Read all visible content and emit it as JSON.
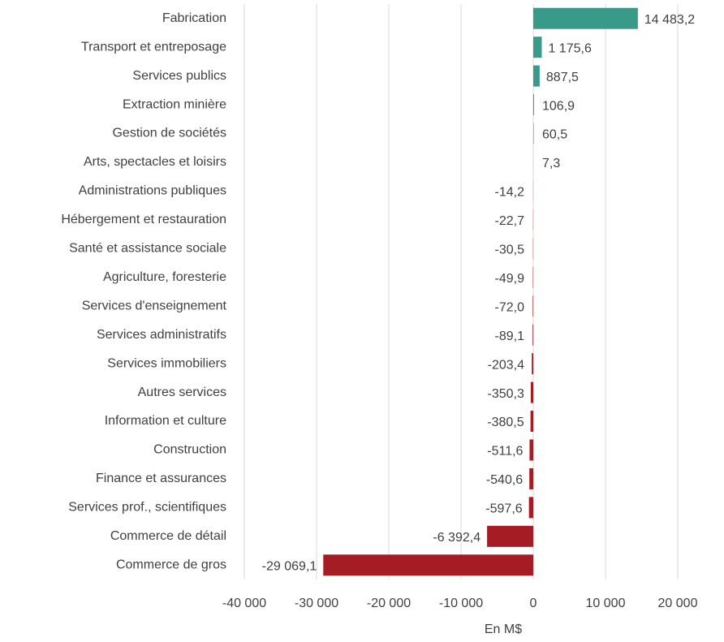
{
  "chart_data": {
    "type": "barh",
    "categories": [
      "Fabrication",
      "Transport et entreposage",
      "Services publics",
      "Extraction minière",
      "Gestion de sociétés",
      "Arts, spectacles et loisirs",
      "Administrations publiques",
      "Hébergement et restauration",
      "Santé et assistance sociale",
      "Agriculture, foresterie",
      "Services d'enseignement",
      "Services administratifs",
      "Services immobiliers",
      "Autres services",
      "Information et culture",
      "Construction",
      "Finance et assurances",
      "Services prof., scientifiques",
      "Commerce de détail",
      "Commerce de gros"
    ],
    "values": [
      14483.2,
      1175.6,
      887.5,
      106.9,
      60.5,
      7.3,
      -14.2,
      -22.7,
      -30.5,
      -49.9,
      -72.0,
      -89.1,
      -203.4,
      -350.3,
      -380.5,
      -511.6,
      -540.6,
      -597.6,
      -6392.4,
      -29069.1
    ],
    "value_labels": [
      "14 483,2",
      "1 175,6",
      "887,5",
      "106,9",
      "60,5",
      "7,3",
      "-14,2",
      "-22,7",
      "-30,5",
      "-49,9",
      "-72,0",
      "-89,1",
      "-203,4",
      "-350,3",
      "-380,5",
      "-511,6",
      "-540,6",
      "-597,6",
      "-6 392,4",
      "-29 069,1"
    ],
    "colors": {
      "positive": "#3a9a8a",
      "negative": "#a51c24"
    },
    "xlabel": "En M$",
    "xlim": [
      -40000,
      20000
    ],
    "xticks": [
      {
        "value": -40000,
        "label": "-40 000"
      },
      {
        "value": -30000,
        "label": "-30 000"
      },
      {
        "value": -20000,
        "label": "-20 000"
      },
      {
        "value": -10000,
        "label": "-10 000"
      },
      0,
      {
        "value": 10000,
        "label": "10 000"
      },
      {
        "value": 20000,
        "label": "20 000"
      }
    ],
    "grid": true
  }
}
